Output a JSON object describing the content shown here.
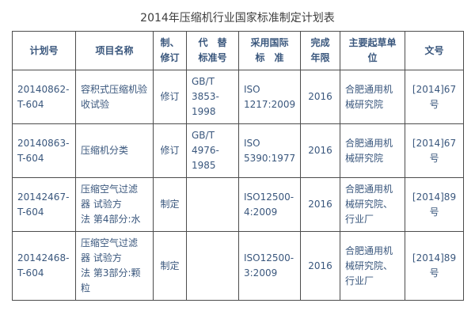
{
  "page": {
    "title": "2014年压缩机行业国家标准制定计划表"
  },
  "colors": {
    "table_text": "#3a577d",
    "title_text": "#3d3d3d",
    "border": "#4c4c4c",
    "background": "#ffffff"
  },
  "table": {
    "headers": [
      "计划号",
      "项目名称",
      "制、\n修订",
      "代　替\n标准号",
      "采用国际\n标　准",
      "完成\n年限",
      "主要起草单\n位",
      "文号"
    ],
    "rows": [
      {
        "plan_no": "20140862-\nT-604",
        "project": "容积式压缩机验\n收试验",
        "type": "修订",
        "replaced": "GB/T\n3853-\n1998",
        "intl_std": "ISO\n1217:2009",
        "year": "2016",
        "drafter": "合肥通用机\n械研究院",
        "doc_no": "[2014]67号"
      },
      {
        "plan_no": "20140863-\nT-604",
        "project": "压缩机分类",
        "type": "修订",
        "replaced": "GB/T\n4976-\n1985",
        "intl_std": "ISO\n5390:1977",
        "year": "2016",
        "drafter": "合肥通用机\n械研究院",
        "doc_no": "[2014]67号"
      },
      {
        "plan_no": "20142467-\nT-604",
        "project": "压缩空气过滤\n器 试验方\n法 第4部分:水",
        "type": "制定",
        "replaced": "",
        "intl_std": "ISO12500-\n4:2009",
        "year": "2016",
        "drafter": "合肥通用机\n械研究院、\n行业厂",
        "doc_no": "[2014]89号"
      },
      {
        "plan_no": "20142468-\nT-604",
        "project": "压缩空气过滤\n器 试验方\n法 第3部分:颗\n粒",
        "type": "制定",
        "replaced": "",
        "intl_std": "ISO12500-\n3:2009",
        "year": "2016",
        "drafter": "合肥通用机\n械研究院、\n行业厂",
        "doc_no": "[2014]89号"
      }
    ]
  }
}
